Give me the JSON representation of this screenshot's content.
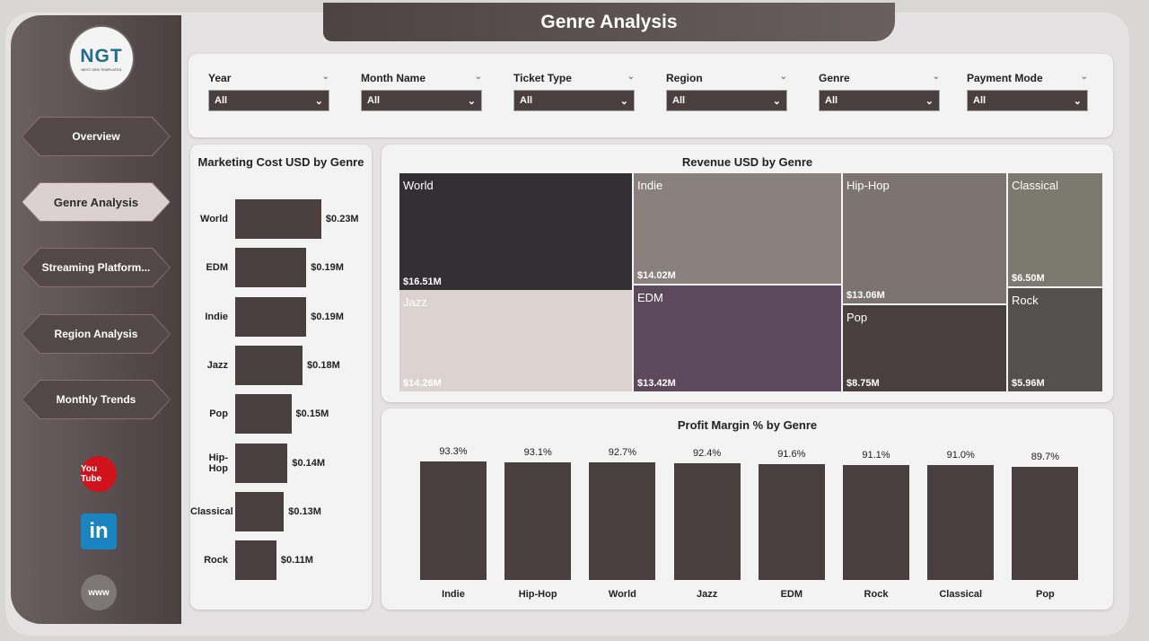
{
  "title": "Genre Analysis",
  "logo": {
    "text": "NGT",
    "sub": "NEXT GEN TEMPLATES"
  },
  "nav": [
    {
      "label": "Overview"
    },
    {
      "label": "Genre Analysis",
      "active": true
    },
    {
      "label": "Streaming Platform..."
    },
    {
      "label": "Region Analysis"
    },
    {
      "label": "Monthly Trends"
    }
  ],
  "social": [
    {
      "icon": "youtube-icon",
      "text": "You Tube",
      "color": "#d0121b"
    },
    {
      "icon": "linkedin-icon",
      "text": "in",
      "color": "#1a84c0"
    },
    {
      "icon": "globe-icon",
      "text": "www",
      "color": "#7d7778"
    }
  ],
  "filters": [
    {
      "label": "Year",
      "value": "All"
    },
    {
      "label": "Month Name",
      "value": "All"
    },
    {
      "label": "Ticket Type",
      "value": "All"
    },
    {
      "label": "Region",
      "value": "All"
    },
    {
      "label": "Genre",
      "value": "All"
    },
    {
      "label": "Payment Mode",
      "value": "All"
    }
  ],
  "chart_data": [
    {
      "type": "bar",
      "orientation": "horizontal",
      "title": "Marketing Cost USD by Genre",
      "categories": [
        "World",
        "EDM",
        "Indie",
        "Jazz",
        "Pop",
        "Hip-Hop",
        "Classical",
        "Rock"
      ],
      "values": [
        0.23,
        0.19,
        0.19,
        0.18,
        0.15,
        0.14,
        0.13,
        0.11
      ],
      "labels": [
        "$0.23M",
        "$0.19M",
        "$0.19M",
        "$0.18M",
        "$0.15M",
        "$0.14M",
        "$0.13M",
        "$0.11M"
      ],
      "unit": "M USD",
      "color": "#4a3f40"
    },
    {
      "type": "treemap",
      "title": "Revenue USD by Genre",
      "categories": [
        "World",
        "Jazz",
        "Indie",
        "EDM",
        "Hip-Hop",
        "Pop",
        "Classical",
        "Rock"
      ],
      "values": [
        16.51,
        14.26,
        14.02,
        13.42,
        13.06,
        8.75,
        6.5,
        5.96
      ],
      "labels": [
        "$16.51M",
        "$14.26M",
        "$14.02M",
        "$13.42M",
        "$13.06M",
        "$8.75M",
        "$6.50M",
        "$5.96M"
      ],
      "colors": [
        "#333033",
        "#dcd3d1",
        "#8a817f",
        "#5c4a5c",
        "#7d7370",
        "#4a3f40",
        "#7a7a6e",
        "#555050"
      ]
    },
    {
      "type": "bar",
      "title": "Profit Margin % by Genre",
      "categories": [
        "Indie",
        "Hip-Hop",
        "World",
        "Jazz",
        "EDM",
        "Rock",
        "Classical",
        "Pop"
      ],
      "values": [
        93.3,
        93.1,
        92.7,
        92.4,
        91.6,
        91.1,
        91.0,
        89.7
      ],
      "labels": [
        "93.3%",
        "93.1%",
        "92.7%",
        "92.4%",
        "91.6%",
        "91.1%",
        "91.0%",
        "89.7%"
      ],
      "ylim": [
        0,
        100
      ],
      "color": "#4a3f40"
    }
  ]
}
